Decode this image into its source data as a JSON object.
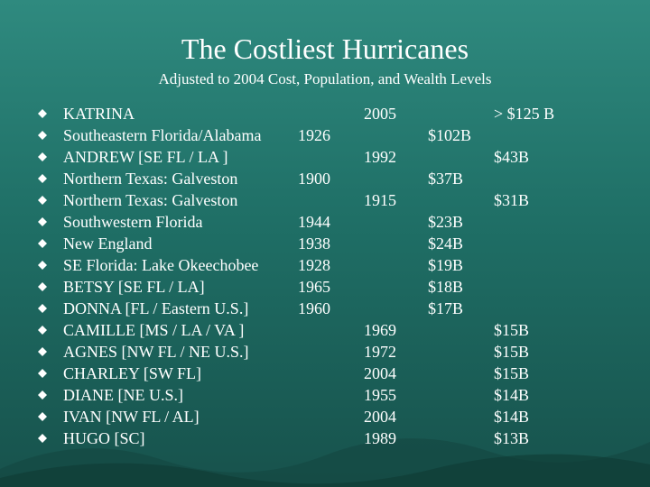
{
  "title": "The Costliest Hurricanes",
  "subtitle": "Adjusted to 2004 Cost, Population, and Wealth Levels",
  "colors": {
    "background": "#1f6f66",
    "text": "#ffffff",
    "bullet": "#ffffff"
  },
  "rows": [
    {
      "name": "KATRINA",
      "c1": "",
      "c2": "2005",
      "c3": "",
      "c4": "> $125 B"
    },
    {
      "name": "Southeastern Florida/Alabama",
      "c1": "1926",
      "c2": "",
      "c3": "$102B",
      "c4": ""
    },
    {
      "name": "ANDREW [SE FL / LA ]",
      "c1": "",
      "c2": "1992",
      "c3": "",
      "c4": "$43B"
    },
    {
      "name": "Northern Texas: Galveston",
      "c1": "1900",
      "c2": "",
      "c3": "$37B",
      "c4": ""
    },
    {
      "name": "Northern Texas: Galveston",
      "c1": "",
      "c2": "1915",
      "c3": "",
      "c4": "$31B"
    },
    {
      "name": "Southwestern Florida",
      "c1": "1944",
      "c2": "",
      "c3": "$23B",
      "c4": ""
    },
    {
      "name": "New England",
      "c1": "1938",
      "c2": "",
      "c3": "$24B",
      "c4": ""
    },
    {
      "name": "SE Florida: Lake Okeechobee",
      "c1": "1928",
      "c2": "",
      "c3": "$19B",
      "c4": ""
    },
    {
      "name": "BETSY [SE FL / LA]",
      "c1": "1965",
      "c2": "",
      "c3": "$18B",
      "c4": ""
    },
    {
      "name": "DONNA [FL / Eastern U.S.]",
      "c1": "1960",
      "c2": "",
      "c3": "$17B",
      "c4": ""
    },
    {
      "name": "CAMILLE [MS / LA / VA ]",
      "c1": "",
      "c2": "1969",
      "c3": "",
      "c4": "$15B"
    },
    {
      "name": "AGNES [NW FL / NE U.S.]",
      "c1": "",
      "c2": "1972",
      "c3": "",
      "c4": "$15B"
    },
    {
      "name": "CHARLEY [SW FL]",
      "c1": "",
      "c2": "2004",
      "c3": "",
      "c4": "$15B"
    },
    {
      "name": "DIANE [NE U.S.]",
      "c1": "",
      "c2": "1955",
      "c3": "",
      "c4": "$14B"
    },
    {
      "name": "IVAN [NW FL / AL]",
      "c1": "",
      "c2": "2004",
      "c3": "",
      "c4": "$14B"
    },
    {
      "name": "HUGO [SC]",
      "c1": "",
      "c2": "1989",
      "c3": "",
      "c4": "$13B"
    }
  ]
}
